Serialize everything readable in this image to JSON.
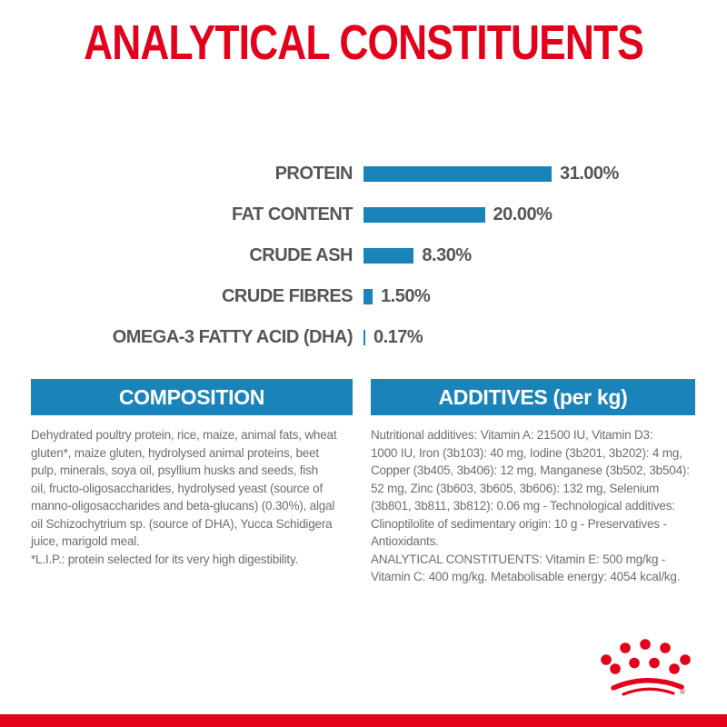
{
  "title": "ANALYTICAL CONSTITUENTS",
  "colors": {
    "brand_red": "#e2001a",
    "bar_blue": "#1a84ba",
    "banner_blue": "#1a84ba",
    "label_gray": "#54565a",
    "body_gray": "#6d6e71",
    "banner_text": "#ffffff"
  },
  "chart_data": {
    "type": "bar",
    "orientation": "horizontal",
    "title": "ANALYTICAL CONSTITUENTS",
    "categories": [
      "PROTEIN",
      "FAT CONTENT",
      "CRUDE ASH",
      "CRUDE FIBRES",
      "OMEGA-3 FATTY ACID (DHA)"
    ],
    "values": [
      31.0,
      20.0,
      8.3,
      1.5,
      0.17
    ],
    "value_labels": [
      "31.00%",
      "20.00%",
      "8.30%",
      "1.50%",
      "0.17%"
    ],
    "unit": "%",
    "xlim": [
      0,
      31
    ],
    "grid": false,
    "legend": false,
    "bar_color": "#1a84ba"
  },
  "sections": {
    "composition": {
      "header": "COMPOSITION",
      "body": "Dehydrated poultry protein, rice, maize, animal fats, wheat\ngluten*, maize gluten, hydrolysed animal proteins, beet\npulp, minerals, soya oil, psyllium husks and seeds, fish\noil, fructo-oligosaccharides, hydrolysed yeast (source of\nmanno-oligosaccharides and beta-glucans) (0.30%), algal\noil Schizochytrium sp. (source of DHA), Yucca Schidigera\njuice, marigold meal.\n*L.I.P.: protein selected for its very high digestibility."
    },
    "additives": {
      "header": "ADDITIVES (per kg)",
      "body": "Nutritional additives: Vitamin A: 21500 IU, Vitamin D3:\n1000 IU, Iron (3b103): 40 mg, Iodine (3b201, 3b202): 4 mg,\nCopper (3b405, 3b406): 12 mg, Manganese (3b502, 3b504):\n52 mg, Zinc (3b603, 3b605, 3b606): 132 mg, Selenium\n(3b801, 3b811, 3b812): 0.06 mg - Technological additives:\nClinoptilolite of sedimentary origin: 10 g - Preservatives -\nAntioxidants.\nANALYTICAL CONSTITUENTS: Vitamin E: 500 mg/kg -\nVitamin C: 400 mg/kg. Metabolisable energy: 4054 kcal/kg."
    }
  },
  "footer": {
    "logo_icon": "royal-canin-crown-logo"
  }
}
